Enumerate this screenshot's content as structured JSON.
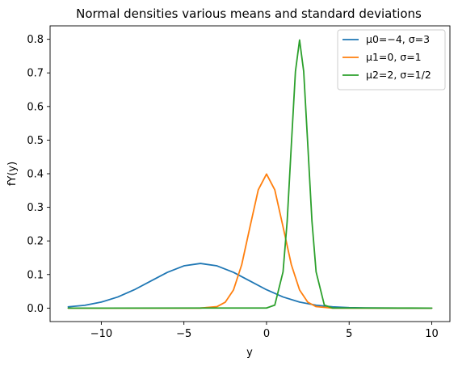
{
  "chart_data": {
    "type": "line",
    "title": "Normal densities various means and standard deviations",
    "xlabel": "y",
    "ylabel": "fY(y)",
    "xlim": [
      -13.1,
      11.1
    ],
    "ylim": [
      -0.04,
      0.84
    ],
    "xticks": [
      -10,
      -5,
      0,
      5,
      10
    ],
    "xtick_labels": [
      "−10",
      "−5",
      "0",
      "5",
      "10"
    ],
    "yticks": [
      0.0,
      0.1,
      0.2,
      0.3,
      0.4,
      0.5,
      0.6,
      0.7,
      0.8
    ],
    "ytick_labels": [
      "0.0",
      "0.1",
      "0.2",
      "0.3",
      "0.4",
      "0.5",
      "0.6",
      "0.7",
      "0.8"
    ],
    "grid": false,
    "legend_position": "top-right",
    "series": [
      {
        "name": "μ0=−4, σ=3",
        "color": "#1f77b4",
        "x": [
          -12,
          -11,
          -10,
          -9,
          -8,
          -7,
          -6,
          -5,
          -4,
          -3,
          -2,
          -1,
          0,
          1,
          2,
          3,
          4,
          5,
          6,
          7,
          8,
          9,
          10
        ],
        "y": [
          0.0038,
          0.0083,
          0.018,
          0.0332,
          0.0547,
          0.0807,
          0.1065,
          0.1258,
          0.133,
          0.1258,
          0.1065,
          0.0807,
          0.0547,
          0.0332,
          0.018,
          0.0087,
          0.0038,
          0.0015,
          0.0005,
          0.0002,
          0.0,
          0.0,
          0.0
        ]
      },
      {
        "name": "μ1=0, σ=1",
        "color": "#ff7f0e",
        "x": [
          -12,
          -5,
          -4,
          -3,
          -2.5,
          -2,
          -1.5,
          -1,
          -0.5,
          0,
          0.5,
          1,
          1.5,
          2,
          2.5,
          3,
          4,
          5,
          10
        ],
        "y": [
          0.0,
          0.0,
          0.0001,
          0.0044,
          0.0175,
          0.054,
          0.1295,
          0.242,
          0.3521,
          0.3989,
          0.3521,
          0.242,
          0.1295,
          0.054,
          0.0175,
          0.0044,
          0.0001,
          0.0,
          0.0
        ]
      },
      {
        "name": "μ2=2, σ=1/2",
        "color": "#2ca02c",
        "x": [
          -12,
          0,
          0.5,
          1.0,
          1.25,
          1.5,
          1.75,
          2.0,
          2.25,
          2.5,
          2.75,
          3.0,
          3.5,
          4.0,
          10
        ],
        "y": [
          0.0,
          0.0003,
          0.0089,
          0.108,
          0.259,
          0.4839,
          0.7041,
          0.7979,
          0.7041,
          0.4839,
          0.259,
          0.108,
          0.0089,
          0.0003,
          0.0
        ]
      }
    ]
  }
}
